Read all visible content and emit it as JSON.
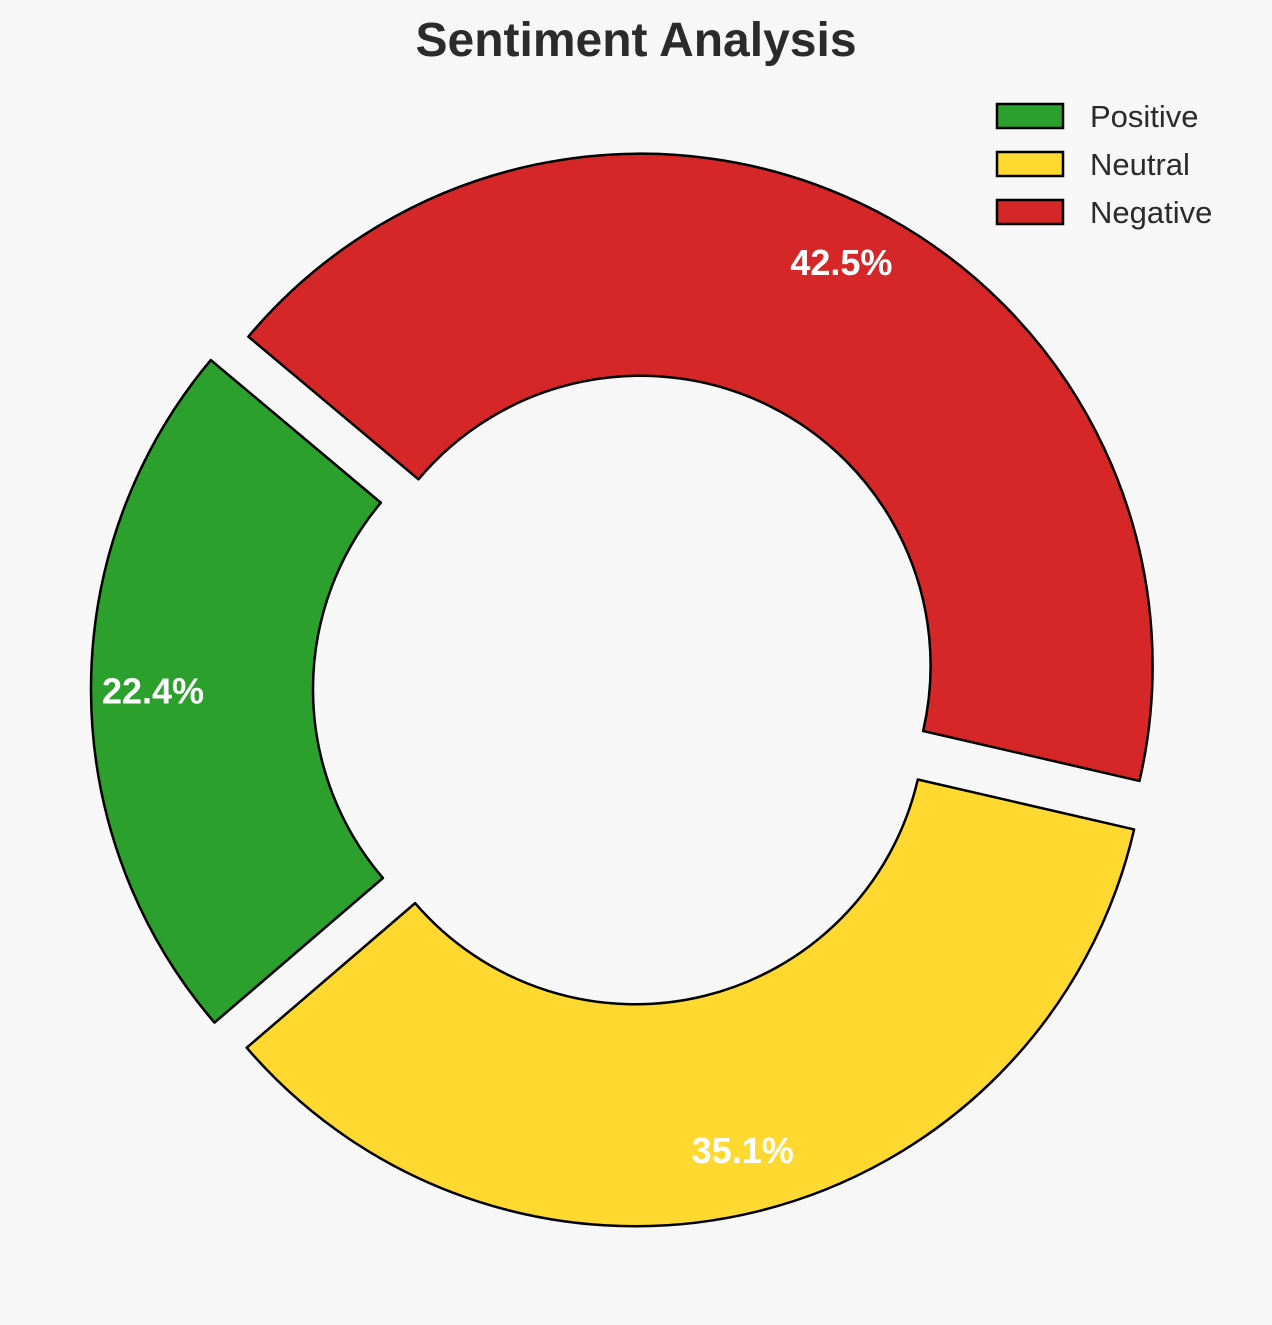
{
  "chart_data": {
    "type": "pie",
    "variant": "donut",
    "title": "Sentiment Analysis",
    "categories": [
      "Positive",
      "Neutral",
      "Negative"
    ],
    "values": [
      22.4,
      35.1,
      42.5
    ],
    "value_labels": [
      "22.4%",
      "35.1%",
      "42.5%"
    ],
    "colors": [
      "#2ca02c",
      "#ffd92f",
      "#d62728"
    ],
    "exploded": true,
    "legend": {
      "position": "top-right",
      "entries": [
        "Positive",
        "Neutral",
        "Negative"
      ]
    }
  }
}
